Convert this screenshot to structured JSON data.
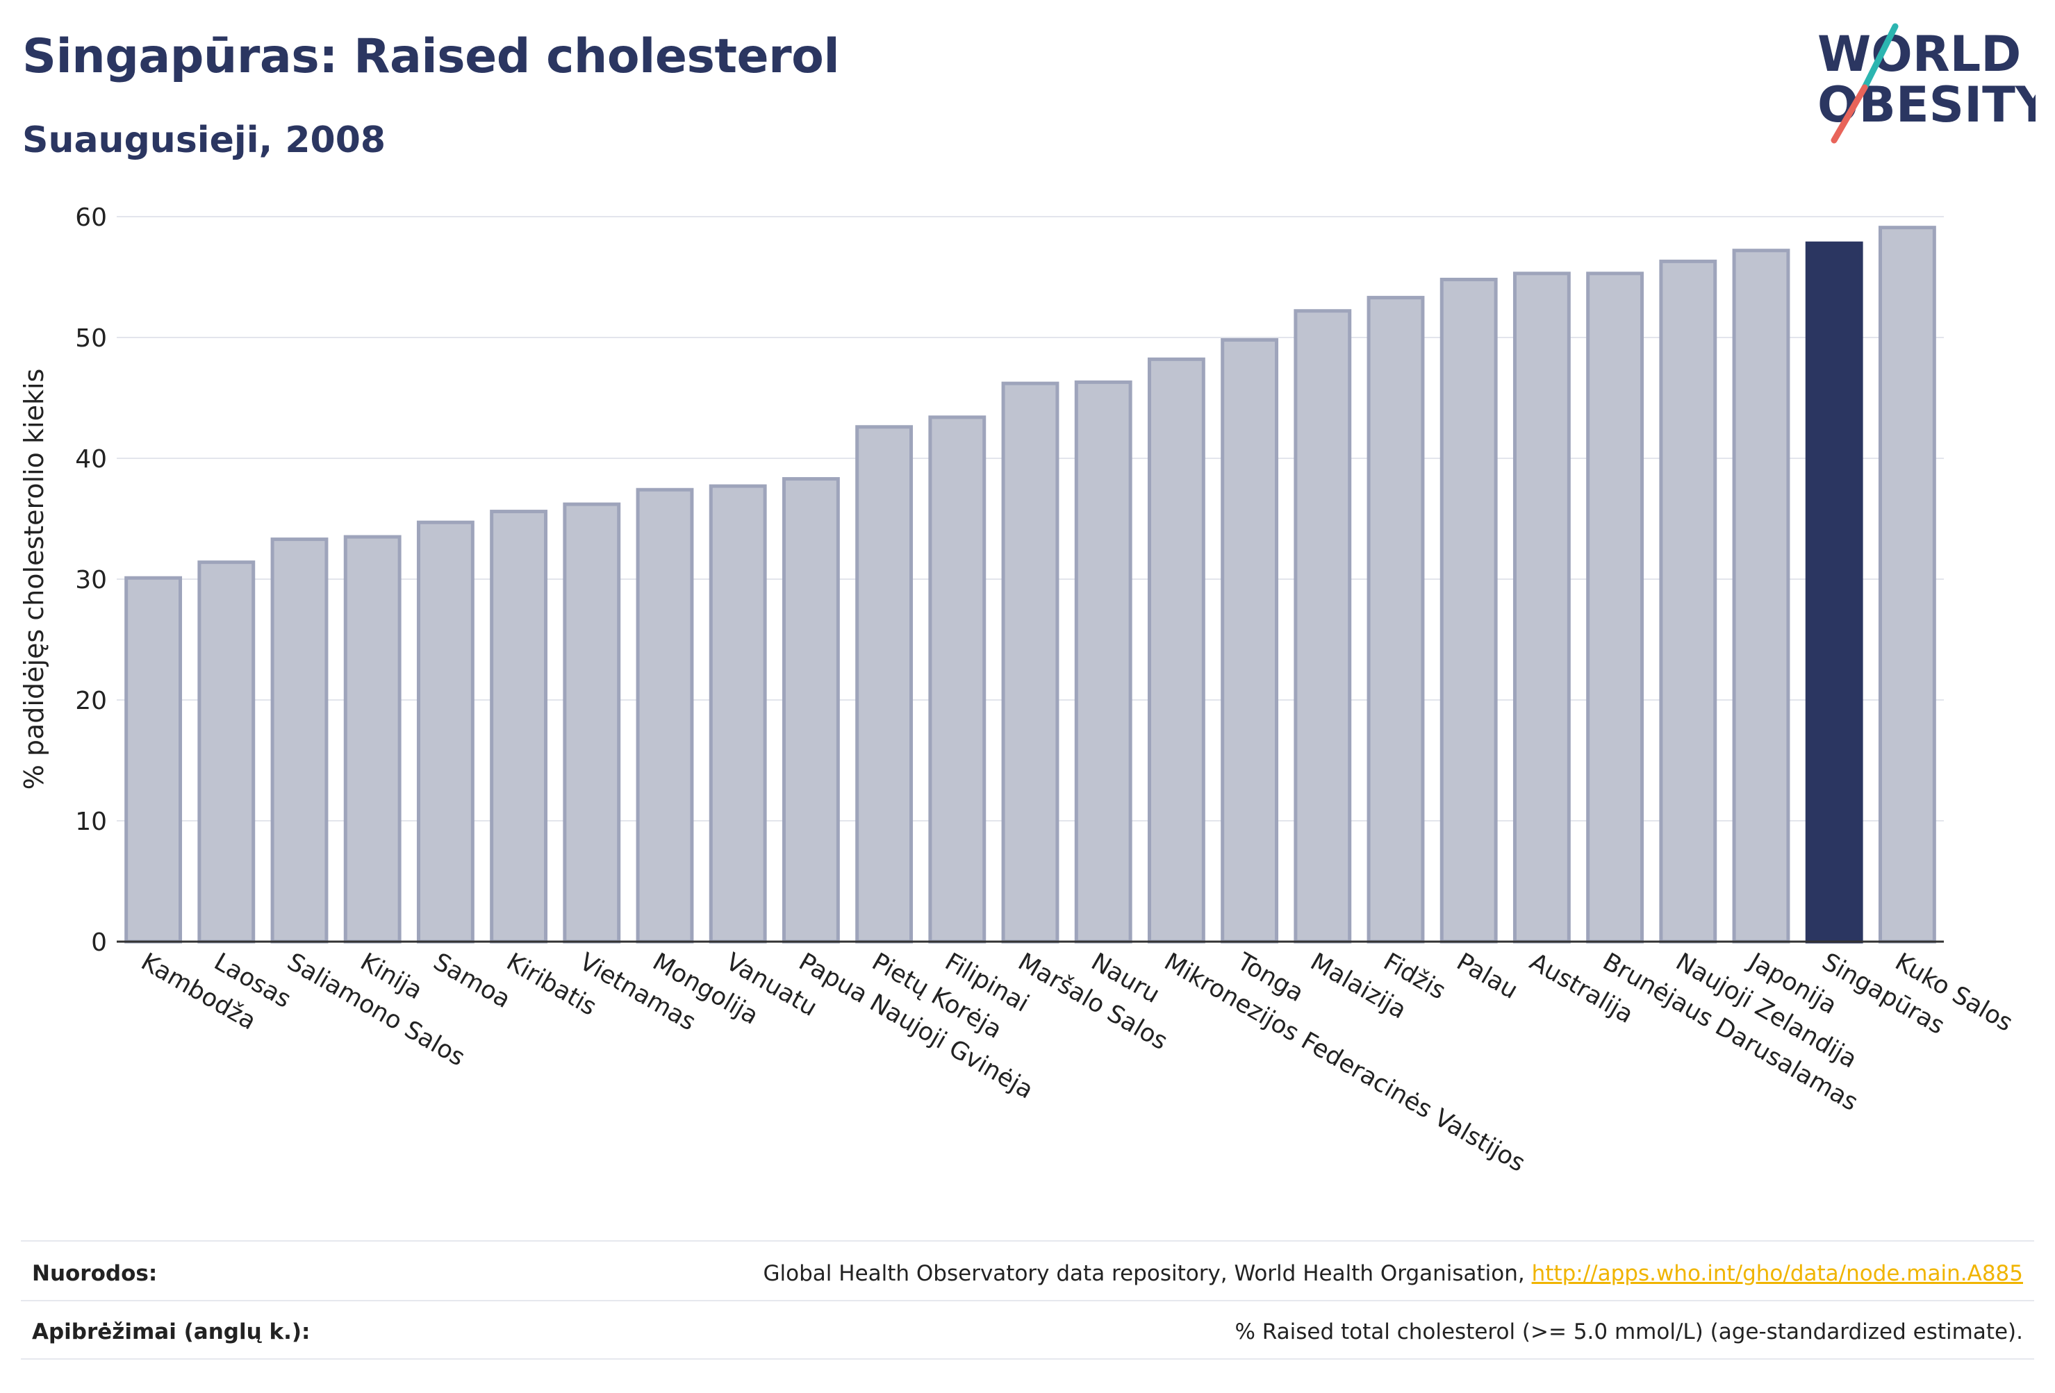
{
  "header": {
    "title": "Singapūras: Raised cholesterol",
    "subtitle": "Suaugusieji, 2008"
  },
  "logo": {
    "line1": "WORLD",
    "line2": "OBESITY",
    "colors": {
      "text": "#2b3661",
      "slash_top": "#2cb5b0",
      "slash_bottom": "#e8645a"
    }
  },
  "chart_data": {
    "type": "bar",
    "ylabel": "% padidėjęs cholesterolio kiekis",
    "ylim": [
      0,
      60
    ],
    "yticks": [
      0,
      10,
      20,
      30,
      40,
      50,
      60
    ],
    "grid": true,
    "categories": [
      "Kambodža",
      "Laosas",
      "Saliamono Salos",
      "Kinija",
      "Samoa",
      "Kiribatis",
      "Vietnamas",
      "Mongolija",
      "Vanuatu",
      "Papua Naujoji Gvinėja",
      "Pietų Korėja",
      "Filipinai",
      "Maršalo Salos",
      "Nauru",
      "Mikronezijos Federacinės Valstijos",
      "Tonga",
      "Malaizija",
      "Fidžis",
      "Palau",
      "Australija",
      "Brunėjaus Darusalamas",
      "Naujoji Zelandija",
      "Japonija",
      "Singapūras",
      "Kuko Salos"
    ],
    "values": [
      30.1,
      31.4,
      33.3,
      33.5,
      34.7,
      35.6,
      36.2,
      37.4,
      37.7,
      38.3,
      42.6,
      43.4,
      46.2,
      46.3,
      48.2,
      49.8,
      52.2,
      53.3,
      54.8,
      55.3,
      55.3,
      56.3,
      57.2,
      57.8,
      59.1
    ],
    "highlight": "Singapūras",
    "colors": {
      "bar": "#bfc3d0",
      "bar_edge": "#9ea4bb",
      "highlight": "#2b3661"
    }
  },
  "footer": {
    "sources_label": "Nuorodos:",
    "sources_text": "Global Health Observatory data repository, World Health Organisation, ",
    "sources_link": "http://apps.who.int/gho/data/node.main.A885",
    "definitions_label": "Apibrėžimai (anglų k.):",
    "definitions_text": "% Raised total cholesterol (>= 5.0 mmol/L) (age-standardized estimate)."
  }
}
